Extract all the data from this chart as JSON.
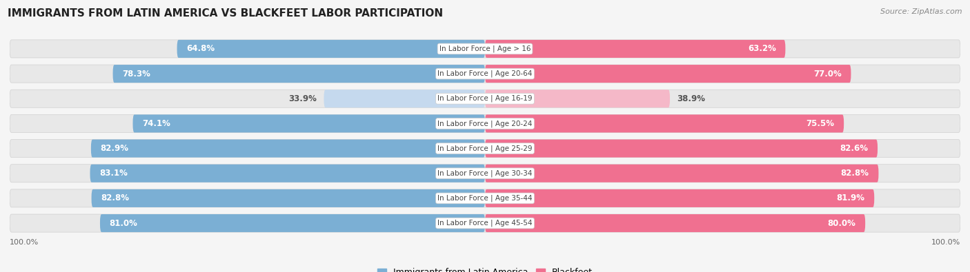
{
  "title": "IMMIGRANTS FROM LATIN AMERICA VS BLACKFEET LABOR PARTICIPATION",
  "source": "Source: ZipAtlas.com",
  "categories": [
    "In Labor Force | Age > 16",
    "In Labor Force | Age 20-64",
    "In Labor Force | Age 16-19",
    "In Labor Force | Age 20-24",
    "In Labor Force | Age 25-29",
    "In Labor Force | Age 30-34",
    "In Labor Force | Age 35-44",
    "In Labor Force | Age 45-54"
  ],
  "latin_values": [
    64.8,
    78.3,
    33.9,
    74.1,
    82.9,
    83.1,
    82.8,
    81.0
  ],
  "blackfeet_values": [
    63.2,
    77.0,
    38.9,
    75.5,
    82.6,
    82.8,
    81.9,
    80.0
  ],
  "latin_color": "#7bafd4",
  "latin_color_light": "#c5d9ee",
  "blackfeet_color": "#f07090",
  "blackfeet_color_light": "#f5b8c8",
  "track_color": "#e8e8e8",
  "track_border": "#d0d0d0",
  "background_color": "#f5f5f5",
  "max_value": 100.0,
  "bar_height": 0.72,
  "threshold": 50.0,
  "legend_latin": "Immigrants from Latin America",
  "legend_blackfeet": "Blackfeet",
  "label_fontsize": 8.5,
  "cat_fontsize": 7.5,
  "title_fontsize": 11
}
